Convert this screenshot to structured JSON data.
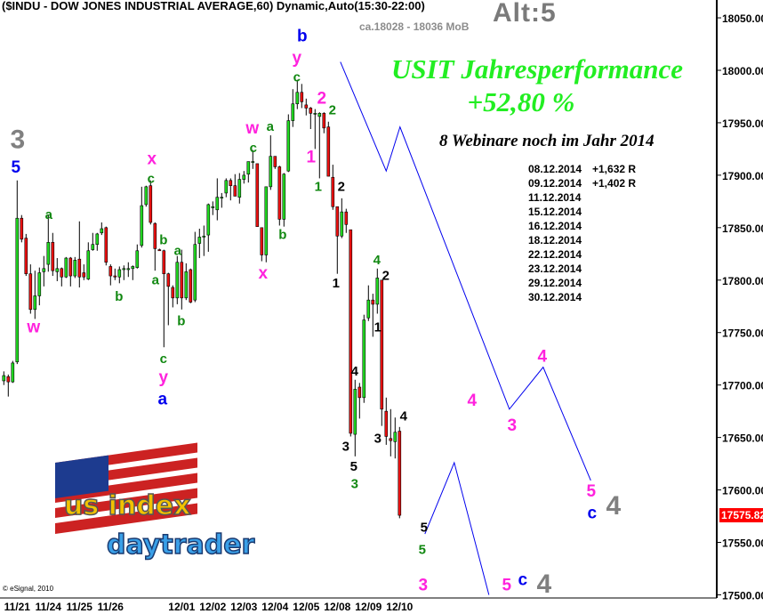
{
  "header": {
    "title": "($INDU - DOW JONES INDUSTRIAL AVERAGE,60) Dynamic,Auto(15:30-22:00)",
    "target_note": "ca.18028 - 18036 MoB",
    "alt_label": "Alt:5"
  },
  "promo": {
    "line1": "USIT Jahresperformance",
    "line2": "+52,80 %",
    "line3": "8 Webinare noch im Jahr 2014",
    "webinars": [
      {
        "date": "08.12.2014",
        "result": "+1,632 R"
      },
      {
        "date": "09.12.2014",
        "result": "+1,402 R"
      },
      {
        "date": "11.12.2014",
        "result": ""
      },
      {
        "date": "15.12.2014",
        "result": ""
      },
      {
        "date": "16.12.2014",
        "result": ""
      },
      {
        "date": "18.12.2014",
        "result": ""
      },
      {
        "date": "22.12.2014",
        "result": ""
      },
      {
        "date": "23.12.2014",
        "result": ""
      },
      {
        "date": "29.12.2014",
        "result": ""
      },
      {
        "date": "30.12.2014",
        "result": ""
      }
    ]
  },
  "logo_text": "us index daytrader",
  "copyright": "© eSignal, 2010",
  "last_price_label": "17575.82",
  "colors": {
    "up": "#22dd22",
    "down": "#ee1111",
    "projection": "#0000ee",
    "last_price_bg": "#ff0000",
    "magenta": "#ff22dd",
    "green": "#118811",
    "blue": "#0000ee",
    "gray": "#808080",
    "black": "#000000"
  },
  "chart_data": {
    "type": "candlestick",
    "title": "($INDU - DOW JONES INDUSTRIAL AVERAGE,60) Dynamic,Auto(15:30-22:00)",
    "interval": "60",
    "ylim": [
      17497,
      18067
    ],
    "grid": false,
    "yticks": [
      18050,
      18000,
      17950,
      17900,
      17850,
      17800,
      17750,
      17700,
      17650,
      17600,
      17550,
      17500
    ],
    "ytick_labels": [
      "18050.00",
      "18000.00",
      "17950.00",
      "17900.00",
      "17850.00",
      "17800.00",
      "17750.00",
      "17700.00",
      "17650.00",
      "17600.00",
      "17550.00",
      "17500.00"
    ],
    "xticks": [
      {
        "label": "11/21",
        "index": 3
      },
      {
        "label": "11/24",
        "index": 10
      },
      {
        "label": "11/25",
        "index": 17
      },
      {
        "label": "11/26",
        "index": 24
      },
      {
        "label": "12/01",
        "index": 40
      },
      {
        "label": "12/02",
        "index": 47
      },
      {
        "label": "12/03",
        "index": 54
      },
      {
        "label": "12/04",
        "index": 61
      },
      {
        "label": "12/05",
        "index": 68
      },
      {
        "label": "12/08",
        "index": 75
      },
      {
        "label": "12/09",
        "index": 82
      },
      {
        "label": "12/10",
        "index": 89
      }
    ],
    "last_price": 17575.82,
    "ohlc": [
      [
        17704,
        17713,
        17700,
        17709
      ],
      [
        17708,
        17710,
        17689,
        17703
      ],
      [
        17703,
        17723,
        17702,
        17721
      ],
      [
        17722,
        17895,
        17720,
        17859
      ],
      [
        17859,
        17862,
        17836,
        17839
      ],
      [
        17840,
        17844,
        17804,
        17806
      ],
      [
        17806,
        17815,
        17768,
        17772
      ],
      [
        17772,
        17809,
        17763,
        17785
      ],
      [
        17785,
        17812,
        17776,
        17807
      ],
      [
        17808,
        17823,
        17794,
        17811
      ],
      [
        17815,
        17862,
        17808,
        17836
      ],
      [
        17836,
        17845,
        17804,
        17809
      ],
      [
        17808,
        17821,
        17799,
        17811
      ],
      [
        17811,
        17812,
        17794,
        17803
      ],
      [
        17803,
        17822,
        17802,
        17821
      ],
      [
        17821,
        17822,
        17794,
        17804
      ],
      [
        17804,
        17822,
        17802,
        17819
      ],
      [
        17820,
        17856,
        17793,
        17803
      ],
      [
        17807,
        17815,
        17800,
        17803
      ],
      [
        17801,
        17836,
        17800,
        17828
      ],
      [
        17829,
        17845,
        17828,
        17834
      ],
      [
        17834,
        17845,
        17828,
        17844
      ],
      [
        17845,
        17855,
        17843,
        17849
      ],
      [
        17850,
        17851,
        17814,
        17817
      ],
      [
        17813,
        17815,
        17795,
        17804
      ],
      [
        17804,
        17811,
        17800,
        17803
      ],
      [
        17803,
        17813,
        17797,
        17810
      ],
      [
        17810,
        17814,
        17800,
        17811
      ],
      [
        17810,
        17817,
        17803,
        17811
      ],
      [
        17811,
        17814,
        17800,
        17813
      ],
      [
        17812,
        17834,
        17811,
        17828
      ],
      [
        17833,
        17889,
        17831,
        17871
      ],
      [
        17872,
        17890,
        17870,
        17889
      ],
      [
        17890,
        17895,
        17853,
        17855
      ],
      [
        17854,
        17855,
        17809,
        17830
      ],
      [
        17829,
        17830,
        17828,
        17828
      ],
      [
        17828,
        17829,
        17736,
        17806
      ],
      [
        17806,
        17807,
        17757,
        17794
      ],
      [
        17793,
        17795,
        17774,
        17783
      ],
      [
        17783,
        17823,
        17777,
        17817
      ],
      [
        17817,
        17829,
        17772,
        17783
      ],
      [
        17783,
        17816,
        17781,
        17808
      ],
      [
        17810,
        17811,
        17778,
        17779
      ],
      [
        17781,
        17846,
        17779,
        17834
      ],
      [
        17835,
        17849,
        17821,
        17841
      ],
      [
        17841,
        17852,
        17823,
        17842
      ],
      [
        17843,
        17873,
        17827,
        17872
      ],
      [
        17869,
        17875,
        17862,
        17870
      ],
      [
        17867,
        17897,
        17857,
        17879
      ],
      [
        17879,
        17883,
        17869,
        17879
      ],
      [
        17883,
        17897,
        17879,
        17895
      ],
      [
        17895,
        17897,
        17876,
        17890
      ],
      [
        17890,
        17901,
        17880,
        17880
      ],
      [
        17879,
        17902,
        17873,
        17896
      ],
      [
        17896,
        17904,
        17892,
        17900
      ],
      [
        17901,
        17913,
        17893,
        17913
      ],
      [
        17913,
        17924,
        17906,
        17913
      ],
      [
        17911,
        17911,
        17851,
        17851
      ],
      [
        17850,
        17850,
        17818,
        17824
      ],
      [
        17824,
        17889,
        17817,
        17889
      ],
      [
        17889,
        17938,
        17886,
        17918
      ],
      [
        17918,
        17918,
        17906,
        17908
      ],
      [
        17908,
        17909,
        17852,
        17858
      ],
      [
        17858,
        17902,
        17851,
        17901
      ],
      [
        17904,
        17958,
        17903,
        17952
      ],
      [
        17952,
        17982,
        17946,
        17968
      ],
      [
        17968,
        17991,
        17963,
        17979
      ],
      [
        17979,
        17987,
        17964,
        17970
      ],
      [
        17967,
        17973,
        17957,
        17964
      ],
      [
        17964,
        17965,
        17944,
        17959
      ],
      [
        17959,
        17963,
        17925,
        17959
      ],
      [
        17956,
        17960,
        17897,
        17959
      ],
      [
        17959,
        17960,
        17940,
        17945
      ],
      [
        17946,
        17951,
        17899,
        17899
      ],
      [
        17898,
        17910,
        17867,
        17870
      ],
      [
        17870,
        17870,
        17806,
        17842
      ],
      [
        17842,
        17878,
        17840,
        17865
      ],
      [
        17865,
        17868,
        17845,
        17853
      ],
      [
        17848,
        17848,
        17651,
        17654
      ],
      [
        17653,
        17705,
        17632,
        17696
      ],
      [
        17698,
        17702,
        17668,
        17688
      ],
      [
        17688,
        17767,
        17683,
        17762
      ],
      [
        17764,
        17795,
        17761,
        17781
      ],
      [
        17781,
        17787,
        17746,
        17777
      ],
      [
        17777,
        17811,
        17768,
        17802
      ],
      [
        17800,
        17800,
        17661,
        17677
      ],
      [
        17675,
        17688,
        17643,
        17651
      ],
      [
        17649,
        17677,
        17632,
        17647
      ],
      [
        17646,
        17669,
        17630,
        17655
      ],
      [
        17656,
        17660,
        17573,
        17575.82
      ]
    ],
    "projections": [
      {
        "points": [
          [
            75.7,
            18008
          ],
          [
            86,
            17904
          ],
          [
            89.1,
            17946
          ],
          [
            113.7,
            17677
          ],
          [
            121.3,
            17717
          ],
          [
            132,
            17609
          ]
        ]
      },
      {
        "points": [
          [
            94.7,
            17558
          ],
          [
            101.3,
            17626
          ],
          [
            109.1,
            17500
          ]
        ]
      }
    ],
    "wave_labels": [
      {
        "text": "3",
        "color": "gray",
        "kind": "huge",
        "index": 3.1,
        "price": 17931
      },
      {
        "text": "5",
        "color": "blue",
        "kind": "major",
        "index": 2.7,
        "price": 17910
      },
      {
        "text": "a",
        "color": "green",
        "kind": "minor",
        "index": 10.1,
        "price": 17862
      },
      {
        "text": "w",
        "color": "magenta",
        "kind": "major",
        "index": 6.7,
        "price": 17755
      },
      {
        "text": "x",
        "color": "magenta",
        "kind": "major",
        "index": 33.3,
        "price": 17912
      },
      {
        "text": "c",
        "color": "green",
        "kind": "minor",
        "index": 33.1,
        "price": 17900
      },
      {
        "text": "b",
        "color": "green",
        "kind": "minor",
        "index": 35.9,
        "price": 17838
      },
      {
        "text": "a",
        "color": "green",
        "kind": "minor",
        "index": 34.1,
        "price": 17800
      },
      {
        "text": "a",
        "color": "green",
        "kind": "minor",
        "index": 39.1,
        "price": 17828
      },
      {
        "text": "b",
        "color": "green",
        "kind": "minor",
        "index": 39.9,
        "price": 17761
      },
      {
        "text": "b",
        "color": "green",
        "kind": "minor",
        "index": 25.9,
        "price": 17784
      },
      {
        "text": "c",
        "color": "green",
        "kind": "minor",
        "index": 35.9,
        "price": 17721
      },
      {
        "text": "y",
        "color": "magenta",
        "kind": "major",
        "index": 35.9,
        "price": 17707
      },
      {
        "text": "a",
        "color": "blue",
        "kind": "major",
        "index": 35.7,
        "price": 17690
      },
      {
        "text": "w",
        "color": "magenta",
        "kind": "major",
        "index": 55.9,
        "price": 17940
      },
      {
        "text": "c",
        "color": "green",
        "kind": "minor",
        "index": 56.1,
        "price": 17930
      },
      {
        "text": "a",
        "color": "green",
        "kind": "minor",
        "index": 59.9,
        "price": 17946
      },
      {
        "text": "b",
        "color": "green",
        "kind": "minor",
        "index": 62.7,
        "price": 17843
      },
      {
        "text": "x",
        "color": "magenta",
        "kind": "major",
        "index": 58.3,
        "price": 17806
      },
      {
        "text": "b",
        "color": "blue",
        "kind": "major",
        "index": 67.1,
        "price": 18027
      },
      {
        "text": "y",
        "color": "magenta",
        "kind": "major",
        "index": 65.9,
        "price": 18011
      },
      {
        "text": "c",
        "color": "green",
        "kind": "minor",
        "index": 65.9,
        "price": 17999
      },
      {
        "text": "2",
        "color": "magenta",
        "kind": "major",
        "index": 71.5,
        "price": 17973
      },
      {
        "text": "2",
        "color": "green",
        "kind": "minor",
        "index": 73.9,
        "price": 17962
      },
      {
        "text": "1",
        "color": "magenta",
        "kind": "major",
        "index": 69.1,
        "price": 17917
      },
      {
        "text": "1",
        "color": "green",
        "kind": "minor",
        "index": 70.7,
        "price": 17889
      },
      {
        "text": "2",
        "color": "black",
        "kind": "minor",
        "index": 75.9,
        "price": 17889
      },
      {
        "text": "1",
        "color": "black",
        "kind": "minor",
        "index": 74.7,
        "price": 17797
      },
      {
        "text": "4",
        "color": "green",
        "kind": "minor",
        "index": 83.9,
        "price": 17819
      },
      {
        "text": "2",
        "color": "black",
        "kind": "minor",
        "index": 85.9,
        "price": 17804
      },
      {
        "text": "1",
        "color": "black",
        "kind": "minor",
        "index": 84.1,
        "price": 17755
      },
      {
        "text": "4",
        "color": "black",
        "kind": "minor",
        "index": 78.9,
        "price": 17713
      },
      {
        "text": "3",
        "color": "black",
        "kind": "minor",
        "index": 76.9,
        "price": 17641
      },
      {
        "text": "5",
        "color": "black",
        "kind": "minor",
        "index": 78.7,
        "price": 17621
      },
      {
        "text": "3",
        "color": "green",
        "kind": "minor",
        "index": 78.9,
        "price": 17607
      },
      {
        "text": "3",
        "color": "black",
        "kind": "minor",
        "index": 84.1,
        "price": 17649
      },
      {
        "text": "4",
        "color": "black",
        "kind": "minor",
        "index": 89.9,
        "price": 17670
      },
      {
        "text": "4",
        "color": "magenta",
        "kind": "major",
        "index": 105.3,
        "price": 17685
      },
      {
        "text": "3",
        "color": "magenta",
        "kind": "major",
        "index": 114.3,
        "price": 17661
      },
      {
        "text": "4",
        "color": "magenta",
        "kind": "major",
        "index": 121.1,
        "price": 17727
      },
      {
        "text": "5",
        "color": "magenta",
        "kind": "major",
        "index": 132.1,
        "price": 17595
      },
      {
        "text": "c",
        "color": "blue",
        "kind": "major",
        "index": 132.3,
        "price": 17581
      },
      {
        "text": "4",
        "color": "gray",
        "kind": "huge",
        "index": 137.1,
        "price": 17585
      },
      {
        "text": "5",
        "color": "black",
        "kind": "minor",
        "index": 94.5,
        "price": 17564
      },
      {
        "text": "5",
        "color": "green",
        "kind": "minor",
        "index": 94.1,
        "price": 17543
      },
      {
        "text": "3",
        "color": "magenta",
        "kind": "major",
        "index": 94.3,
        "price": 17509
      },
      {
        "text": "5",
        "color": "magenta",
        "kind": "major",
        "index": 113.1,
        "price": 17509
      },
      {
        "text": "c",
        "color": "blue",
        "kind": "major",
        "index": 116.7,
        "price": 17514
      },
      {
        "text": "4",
        "color": "gray",
        "kind": "huge",
        "index": 121.5,
        "price": 17510
      }
    ]
  }
}
